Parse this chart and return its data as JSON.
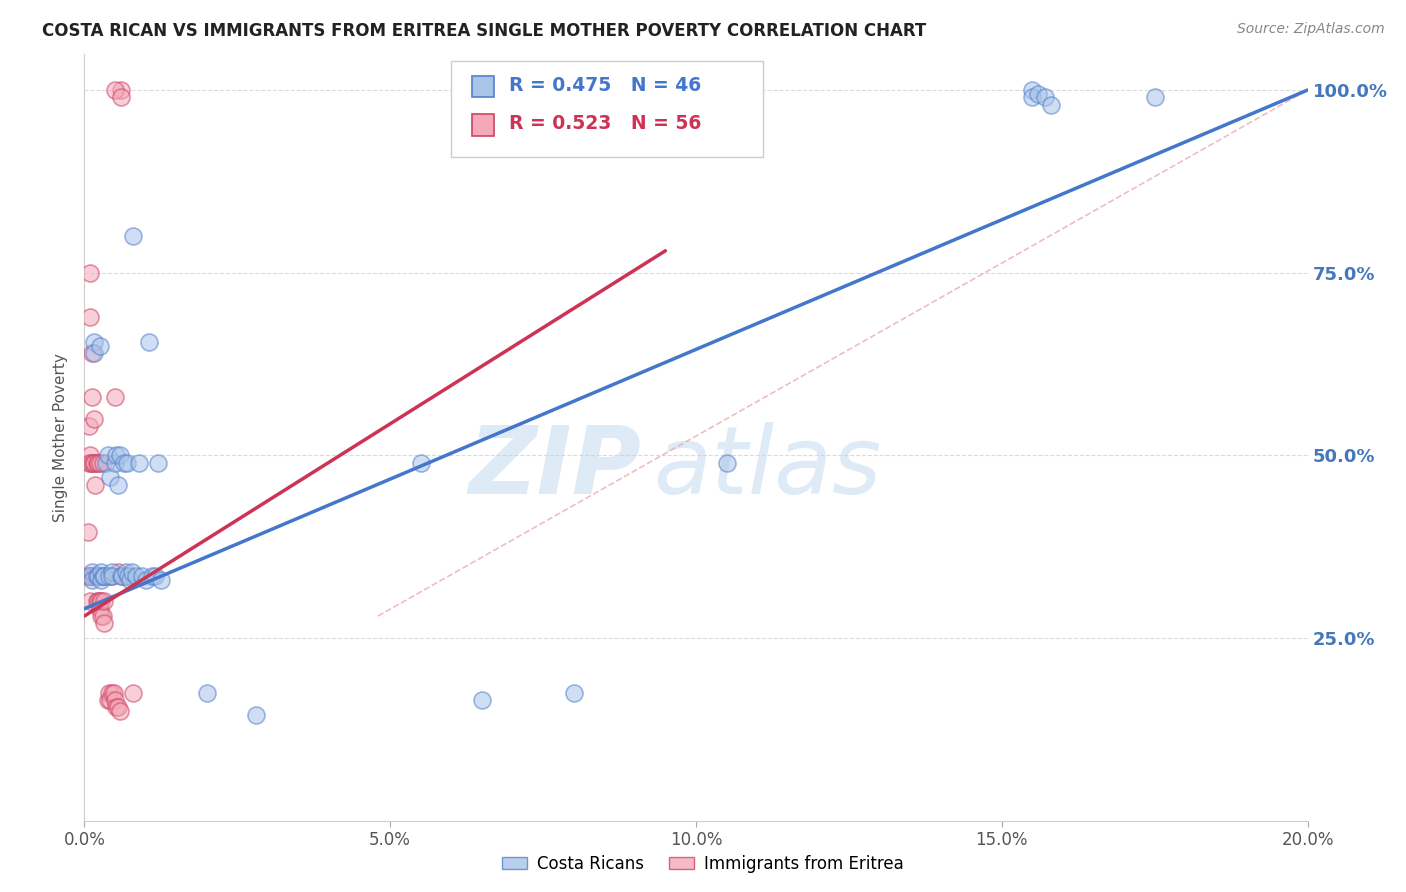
{
  "title": "COSTA RICAN VS IMMIGRANTS FROM ERITREA SINGLE MOTHER POVERTY CORRELATION CHART",
  "source": "Source: ZipAtlas.com",
  "ylabel": "Single Mother Poverty",
  "xlim": [
    0,
    0.2
  ],
  "ylim": [
    0,
    1.05
  ],
  "yticks": [
    0.25,
    0.5,
    0.75,
    1.0
  ],
  "ytick_labels": [
    "25.0%",
    "50.0%",
    "75.0%",
    "100.0%"
  ],
  "xticks": [
    0.0,
    0.05,
    0.1,
    0.15,
    0.2
  ],
  "xtick_labels": [
    "0.0%",
    "5.0%",
    "10.0%",
    "15.0%",
    "20.0%"
  ],
  "blue_label": "Costa Ricans",
  "pink_label": "Immigrants from Eritrea",
  "blue_R": "0.475",
  "blue_N": "46",
  "pink_R": "0.523",
  "pink_N": "56",
  "blue_fill": "#A8C4E8",
  "pink_fill": "#F4A8B8",
  "blue_edge": "#5580CC",
  "pink_edge": "#CC4466",
  "blue_line_color": "#4477CC",
  "pink_line_color": "#CC3355",
  "diag_line_color": "#E8A0B0",
  "blue_line_x": [
    0.0,
    0.2
  ],
  "blue_line_y": [
    0.29,
    1.0
  ],
  "pink_line_x": [
    0.0,
    0.095
  ],
  "pink_line_y": [
    0.28,
    0.78
  ],
  "diag_line_x": [
    0.048,
    0.2
  ],
  "diag_line_y": [
    0.28,
    1.0
  ],
  "bg_color": "#FFFFFF",
  "grid_color": "#CCCCCC",
  "right_tick_color": "#4477BB",
  "blue_scatter_x": [
    0.001,
    0.0012,
    0.0013,
    0.0015,
    0.0015,
    0.002,
    0.0022,
    0.0025,
    0.0028,
    0.0028,
    0.003,
    0.0032,
    0.0035,
    0.0038,
    0.004,
    0.0042,
    0.0045,
    0.0045,
    0.005,
    0.0052,
    0.0055,
    0.0058,
    0.006,
    0.0062,
    0.0065,
    0.0068,
    0.007,
    0.0072,
    0.0075,
    0.0078,
    0.008,
    0.0085,
    0.009,
    0.0095,
    0.01,
    0.0105,
    0.011,
    0.0115,
    0.012,
    0.0125,
    0.02,
    0.028,
    0.055,
    0.065,
    0.08,
    0.105
  ],
  "blue_scatter_y": [
    0.335,
    0.34,
    0.33,
    0.655,
    0.64,
    0.335,
    0.335,
    0.65,
    0.34,
    0.33,
    0.335,
    0.335,
    0.49,
    0.5,
    0.335,
    0.47,
    0.34,
    0.335,
    0.49,
    0.5,
    0.46,
    0.5,
    0.335,
    0.335,
    0.49,
    0.34,
    0.49,
    0.335,
    0.33,
    0.34,
    0.8,
    0.335,
    0.49,
    0.335,
    0.33,
    0.655,
    0.335,
    0.335,
    0.49,
    0.33,
    0.175,
    0.145,
    0.49,
    0.165,
    0.175,
    0.49
  ],
  "pink_scatter_x": [
    0.0005,
    0.0006,
    0.0007,
    0.0008,
    0.0008,
    0.0009,
    0.001,
    0.001,
    0.001,
    0.001,
    0.001,
    0.001,
    0.0012,
    0.0012,
    0.0013,
    0.0013,
    0.0015,
    0.0015,
    0.0015,
    0.0015,
    0.0018,
    0.0018,
    0.002,
    0.002,
    0.002,
    0.0022,
    0.0022,
    0.0022,
    0.0025,
    0.0025,
    0.0025,
    0.0025,
    0.0028,
    0.0028,
    0.0028,
    0.003,
    0.003,
    0.0032,
    0.0032,
    0.0035,
    0.0038,
    0.004,
    0.0042,
    0.0045,
    0.0045,
    0.0048,
    0.005,
    0.005,
    0.0052,
    0.0055,
    0.0055,
    0.0058,
    0.006,
    0.0065,
    0.007,
    0.008
  ],
  "pink_scatter_y": [
    0.335,
    0.395,
    0.54,
    0.335,
    0.49,
    0.335,
    0.75,
    0.69,
    0.5,
    0.49,
    0.335,
    0.3,
    0.335,
    0.49,
    0.64,
    0.58,
    0.49,
    0.335,
    0.55,
    0.49,
    0.46,
    0.335,
    0.49,
    0.335,
    0.3,
    0.49,
    0.335,
    0.3,
    0.49,
    0.335,
    0.3,
    0.29,
    0.335,
    0.3,
    0.28,
    0.49,
    0.28,
    0.3,
    0.27,
    0.335,
    0.165,
    0.175,
    0.165,
    0.335,
    0.175,
    0.175,
    0.58,
    0.165,
    0.155,
    0.34,
    0.155,
    0.15,
    1.0,
    0.335,
    0.335,
    0.175
  ]
}
